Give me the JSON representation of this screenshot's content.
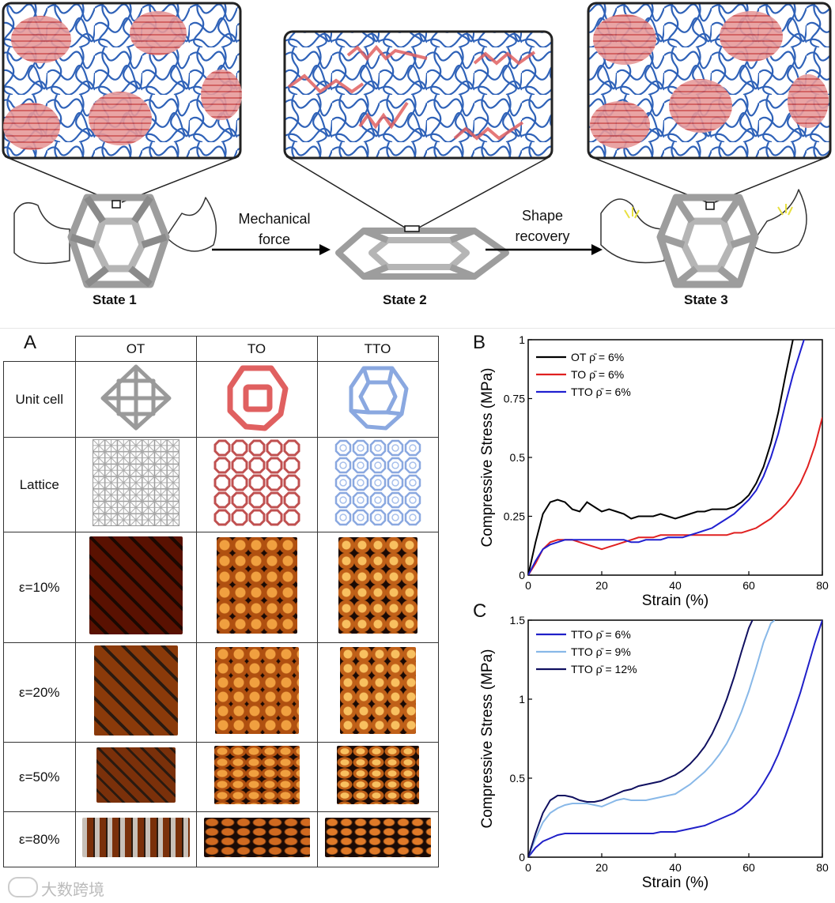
{
  "top_figure": {
    "states": [
      "State 1",
      "State 2",
      "State 3"
    ],
    "arrow1": [
      "Mechanical",
      "force"
    ],
    "arrow2": [
      "Shape",
      "recovery"
    ]
  },
  "panel_a": {
    "letter": "A",
    "columns": [
      "OT",
      "TO",
      "TTO"
    ],
    "rows": [
      "Unit cell",
      "Lattice",
      "ε=10%",
      "ε=20%",
      "ε=50%",
      "ε=80%"
    ],
    "colors": {
      "OT": "#9a9a9a",
      "TO": "#e06060",
      "TTO": "#8aa8e0"
    }
  },
  "chart_b": {
    "letter": "B",
    "type": "line",
    "ylabel": "Compressive Stress (MPa)",
    "xlabel": "Strain (%)",
    "xlim": [
      0,
      80
    ],
    "ylim": [
      0,
      1
    ],
    "xticks": [
      "0",
      "20",
      "40",
      "60",
      "80"
    ],
    "yticks": [
      "0",
      "0.25",
      "0.5",
      "0.75",
      "1"
    ],
    "series": [
      {
        "name": "OT  ρ̄ = 6%",
        "color": "#000000",
        "x": [
          0,
          2,
          4,
          6,
          8,
          10,
          12,
          14,
          16,
          18,
          20,
          22,
          24,
          26,
          28,
          30,
          32,
          34,
          36,
          38,
          40,
          42,
          44,
          46,
          48,
          50,
          52,
          54,
          56,
          58,
          60,
          62,
          64,
          66,
          68,
          70,
          72
        ],
        "y": [
          0,
          0.14,
          0.26,
          0.31,
          0.32,
          0.31,
          0.28,
          0.27,
          0.31,
          0.29,
          0.27,
          0.28,
          0.27,
          0.26,
          0.24,
          0.25,
          0.25,
          0.25,
          0.26,
          0.25,
          0.24,
          0.25,
          0.26,
          0.27,
          0.27,
          0.28,
          0.28,
          0.28,
          0.29,
          0.31,
          0.34,
          0.39,
          0.46,
          0.56,
          0.69,
          0.85,
          1.0
        ]
      },
      {
        "name": "TO  ρ̄ = 6%",
        "color": "#e02020",
        "x": [
          0,
          2,
          4,
          6,
          8,
          10,
          12,
          14,
          16,
          18,
          20,
          22,
          24,
          26,
          28,
          30,
          32,
          34,
          36,
          38,
          40,
          42,
          44,
          46,
          48,
          50,
          52,
          54,
          56,
          58,
          60,
          62,
          64,
          66,
          68,
          70,
          72,
          74,
          76,
          78,
          80
        ],
        "y": [
          0,
          0.05,
          0.11,
          0.14,
          0.15,
          0.15,
          0.15,
          0.14,
          0.13,
          0.12,
          0.11,
          0.12,
          0.13,
          0.14,
          0.15,
          0.16,
          0.16,
          0.16,
          0.17,
          0.17,
          0.17,
          0.17,
          0.17,
          0.17,
          0.17,
          0.17,
          0.17,
          0.17,
          0.18,
          0.18,
          0.19,
          0.2,
          0.22,
          0.24,
          0.27,
          0.3,
          0.34,
          0.39,
          0.46,
          0.55,
          0.67
        ]
      },
      {
        "name": "TTO  ρ̄ = 6%",
        "color": "#2020d0",
        "x": [
          0,
          2,
          4,
          6,
          8,
          10,
          12,
          14,
          16,
          18,
          20,
          22,
          24,
          26,
          28,
          30,
          32,
          34,
          36,
          38,
          40,
          42,
          44,
          46,
          48,
          50,
          52,
          54,
          56,
          58,
          60,
          62,
          64,
          66,
          68,
          70,
          72,
          74,
          75
        ],
        "y": [
          0,
          0.06,
          0.11,
          0.13,
          0.14,
          0.15,
          0.15,
          0.15,
          0.15,
          0.15,
          0.15,
          0.15,
          0.15,
          0.15,
          0.14,
          0.14,
          0.15,
          0.15,
          0.15,
          0.16,
          0.16,
          0.16,
          0.17,
          0.18,
          0.19,
          0.2,
          0.22,
          0.24,
          0.26,
          0.29,
          0.32,
          0.36,
          0.42,
          0.5,
          0.6,
          0.73,
          0.85,
          0.95,
          1.0
        ]
      }
    ]
  },
  "chart_c": {
    "letter": "C",
    "type": "line",
    "ylabel": "Compressive Stress (MPa)",
    "xlabel": "Strain (%)",
    "xlim": [
      0,
      80
    ],
    "ylim": [
      0,
      1.5
    ],
    "xticks": [
      "0",
      "20",
      "40",
      "60",
      "80"
    ],
    "yticks": [
      "0",
      "0.5",
      "1",
      "1.5"
    ],
    "series": [
      {
        "name": "TTO  ρ̄ = 6%",
        "color": "#2020c8",
        "x": [
          0,
          2,
          4,
          6,
          8,
          10,
          12,
          14,
          16,
          18,
          20,
          22,
          24,
          26,
          28,
          30,
          32,
          34,
          36,
          38,
          40,
          42,
          44,
          46,
          48,
          50,
          52,
          54,
          56,
          58,
          60,
          62,
          64,
          66,
          68,
          70,
          72,
          74,
          76,
          78,
          80
        ],
        "y": [
          0,
          0.06,
          0.1,
          0.12,
          0.14,
          0.15,
          0.15,
          0.15,
          0.15,
          0.15,
          0.15,
          0.15,
          0.15,
          0.15,
          0.15,
          0.15,
          0.15,
          0.15,
          0.16,
          0.16,
          0.16,
          0.17,
          0.18,
          0.19,
          0.2,
          0.22,
          0.24,
          0.26,
          0.28,
          0.31,
          0.35,
          0.4,
          0.47,
          0.55,
          0.65,
          0.77,
          0.9,
          1.04,
          1.2,
          1.36,
          1.5
        ]
      },
      {
        "name": "TTO  ρ̄ = 9%",
        "color": "#88b8e8",
        "x": [
          0,
          2,
          4,
          6,
          8,
          10,
          12,
          14,
          16,
          18,
          20,
          22,
          24,
          26,
          28,
          30,
          32,
          34,
          36,
          38,
          40,
          42,
          44,
          46,
          48,
          50,
          52,
          54,
          56,
          58,
          60,
          62,
          64,
          66,
          67
        ],
        "y": [
          0,
          0.12,
          0.22,
          0.28,
          0.31,
          0.33,
          0.34,
          0.34,
          0.34,
          0.33,
          0.32,
          0.34,
          0.36,
          0.37,
          0.36,
          0.36,
          0.36,
          0.37,
          0.38,
          0.39,
          0.4,
          0.43,
          0.46,
          0.5,
          0.54,
          0.59,
          0.65,
          0.72,
          0.81,
          0.92,
          1.05,
          1.2,
          1.36,
          1.48,
          1.5
        ]
      },
      {
        "name": "TTO  ρ̄ = 12%",
        "color": "#101060",
        "x": [
          0,
          2,
          4,
          6,
          8,
          10,
          12,
          14,
          16,
          18,
          20,
          22,
          24,
          26,
          28,
          30,
          32,
          34,
          36,
          38,
          40,
          42,
          44,
          46,
          48,
          50,
          52,
          54,
          56,
          58,
          60,
          61
        ],
        "y": [
          0,
          0.15,
          0.28,
          0.36,
          0.39,
          0.39,
          0.38,
          0.36,
          0.35,
          0.35,
          0.36,
          0.38,
          0.4,
          0.42,
          0.43,
          0.45,
          0.46,
          0.47,
          0.48,
          0.5,
          0.52,
          0.55,
          0.59,
          0.64,
          0.7,
          0.78,
          0.88,
          1.0,
          1.14,
          1.3,
          1.45,
          1.5
        ]
      }
    ]
  },
  "watermark": "大数跨境"
}
